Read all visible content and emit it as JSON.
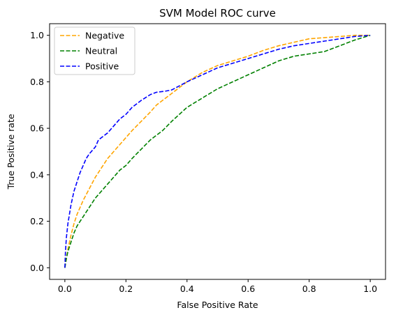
{
  "chart_data": {
    "type": "line",
    "title": "SVM Model ROC curve",
    "xlabel": "False Positive Rate",
    "ylabel": "True Positive rate",
    "xlim": [
      -0.05,
      1.05
    ],
    "ylim": [
      -0.05,
      1.05
    ],
    "xticks": [
      0.0,
      0.2,
      0.4,
      0.6,
      0.8,
      1.0
    ],
    "yticks": [
      0.0,
      0.2,
      0.4,
      0.6,
      0.8,
      1.0
    ],
    "xtick_labels": [
      "0.0",
      "0.2",
      "0.4",
      "0.6",
      "0.8",
      "1.0"
    ],
    "ytick_labels": [
      "0.0",
      "0.2",
      "0.4",
      "0.6",
      "0.8",
      "1.0"
    ],
    "grid": false,
    "legend_position": "top-left",
    "line_style": "dashed",
    "series": [
      {
        "name": "Negative",
        "color": "#ffa500",
        "x": [
          0.0,
          0.005,
          0.01,
          0.02,
          0.03,
          0.04,
          0.05,
          0.06,
          0.08,
          0.1,
          0.12,
          0.14,
          0.16,
          0.18,
          0.2,
          0.22,
          0.25,
          0.28,
          0.3,
          0.35,
          0.4,
          0.45,
          0.5,
          0.55,
          0.6,
          0.65,
          0.7,
          0.75,
          0.8,
          0.85,
          0.9,
          0.95,
          1.0
        ],
        "y": [
          0.0,
          0.04,
          0.08,
          0.14,
          0.19,
          0.23,
          0.26,
          0.29,
          0.34,
          0.39,
          0.43,
          0.47,
          0.5,
          0.53,
          0.56,
          0.59,
          0.63,
          0.67,
          0.7,
          0.75,
          0.8,
          0.84,
          0.87,
          0.89,
          0.91,
          0.935,
          0.955,
          0.97,
          0.985,
          0.99,
          0.995,
          1.0,
          1.0
        ]
      },
      {
        "name": "Neutral",
        "color": "#008000",
        "x": [
          0.0,
          0.005,
          0.01,
          0.02,
          0.03,
          0.04,
          0.05,
          0.06,
          0.08,
          0.1,
          0.12,
          0.14,
          0.16,
          0.18,
          0.2,
          0.22,
          0.25,
          0.28,
          0.3,
          0.32,
          0.35,
          0.4,
          0.45,
          0.5,
          0.55,
          0.6,
          0.65,
          0.7,
          0.75,
          0.8,
          0.85,
          0.9,
          0.95,
          1.0
        ],
        "y": [
          0.0,
          0.04,
          0.07,
          0.11,
          0.15,
          0.18,
          0.2,
          0.22,
          0.26,
          0.3,
          0.33,
          0.36,
          0.39,
          0.42,
          0.44,
          0.47,
          0.51,
          0.55,
          0.57,
          0.59,
          0.63,
          0.69,
          0.73,
          0.77,
          0.8,
          0.83,
          0.86,
          0.89,
          0.91,
          0.92,
          0.93,
          0.955,
          0.98,
          1.0
        ]
      },
      {
        "name": "Positive",
        "color": "#0000ff",
        "x": [
          0.0,
          0.002,
          0.005,
          0.01,
          0.02,
          0.03,
          0.04,
          0.05,
          0.06,
          0.07,
          0.08,
          0.1,
          0.11,
          0.12,
          0.14,
          0.16,
          0.18,
          0.2,
          0.22,
          0.25,
          0.28,
          0.3,
          0.33,
          0.35,
          0.4,
          0.45,
          0.5,
          0.55,
          0.6,
          0.65,
          0.7,
          0.75,
          0.8,
          0.85,
          0.9,
          0.95,
          1.0
        ],
        "y": [
          0.0,
          0.07,
          0.13,
          0.19,
          0.27,
          0.33,
          0.37,
          0.41,
          0.44,
          0.47,
          0.49,
          0.52,
          0.55,
          0.56,
          0.58,
          0.61,
          0.64,
          0.66,
          0.69,
          0.72,
          0.745,
          0.755,
          0.76,
          0.765,
          0.8,
          0.83,
          0.86,
          0.88,
          0.9,
          0.92,
          0.94,
          0.955,
          0.965,
          0.975,
          0.985,
          0.995,
          1.0
        ]
      }
    ]
  }
}
